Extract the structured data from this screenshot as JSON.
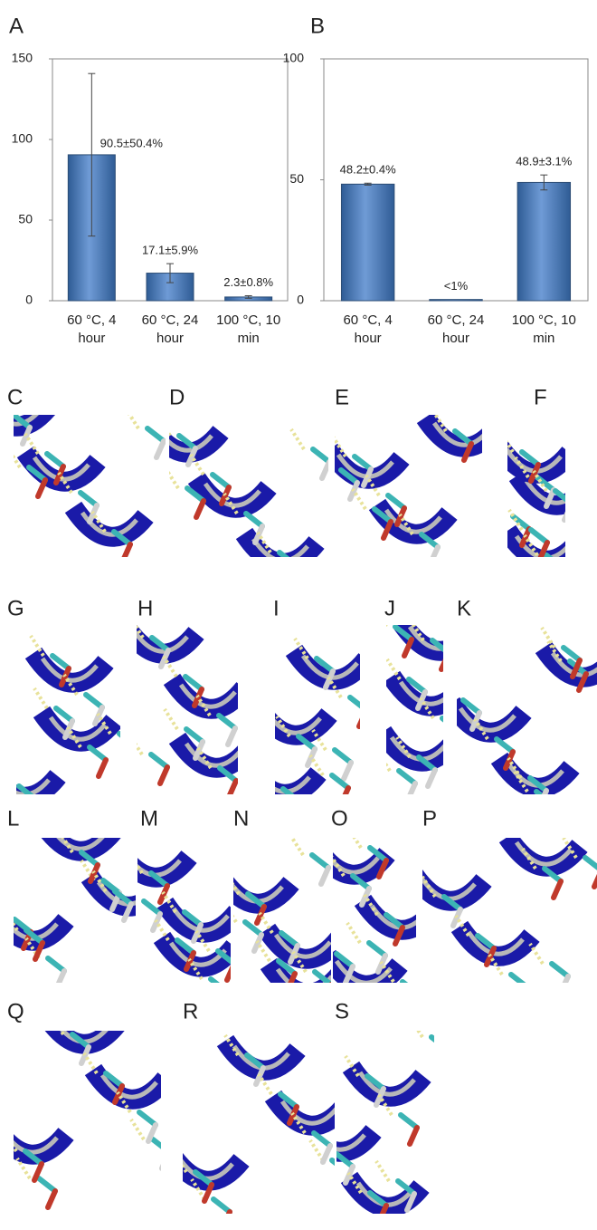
{
  "chart_data": [
    {
      "type": "bar",
      "panel_label": "A",
      "categories": [
        "60 °C, 4 hour",
        "60 °C, 24 hour",
        "100 °C, 10 min"
      ],
      "values": [
        90.5,
        17.1,
        2.3
      ],
      "errors": [
        50.4,
        5.9,
        0.8
      ],
      "value_labels": [
        "90.5±50.4%",
        "17.1±5.9%",
        "2.3±0.8%"
      ],
      "color": "#4f81bd",
      "ylim": [
        0,
        150
      ],
      "yticks": [
        0,
        50,
        100,
        150
      ]
    },
    {
      "type": "bar",
      "panel_label": "B",
      "categories": [
        "60 °C, 4 hour",
        "60 °C, 24 hour",
        "100 °C, 10 min"
      ],
      "values": [
        48.2,
        0.5,
        48.9
      ],
      "errors": [
        0.4,
        null,
        3.1
      ],
      "value_labels": [
        "48.2±0.4%",
        "<1%",
        "48.9±3.1%"
      ],
      "color": "#4f81bd",
      "ylim": [
        0,
        100
      ],
      "yticks": [
        0,
        50,
        100
      ]
    }
  ],
  "panels": [
    {
      "label": "C"
    },
    {
      "label": "D"
    },
    {
      "label": "E"
    },
    {
      "label": "F"
    },
    {
      "label": "G"
    },
    {
      "label": "H"
    },
    {
      "label": "I"
    },
    {
      "label": "J"
    },
    {
      "label": "K"
    },
    {
      "label": "L"
    },
    {
      "label": "M"
    },
    {
      "label": "N"
    },
    {
      "label": "O"
    },
    {
      "label": "P"
    },
    {
      "label": "Q"
    },
    {
      "label": "R"
    },
    {
      "label": "S"
    }
  ]
}
